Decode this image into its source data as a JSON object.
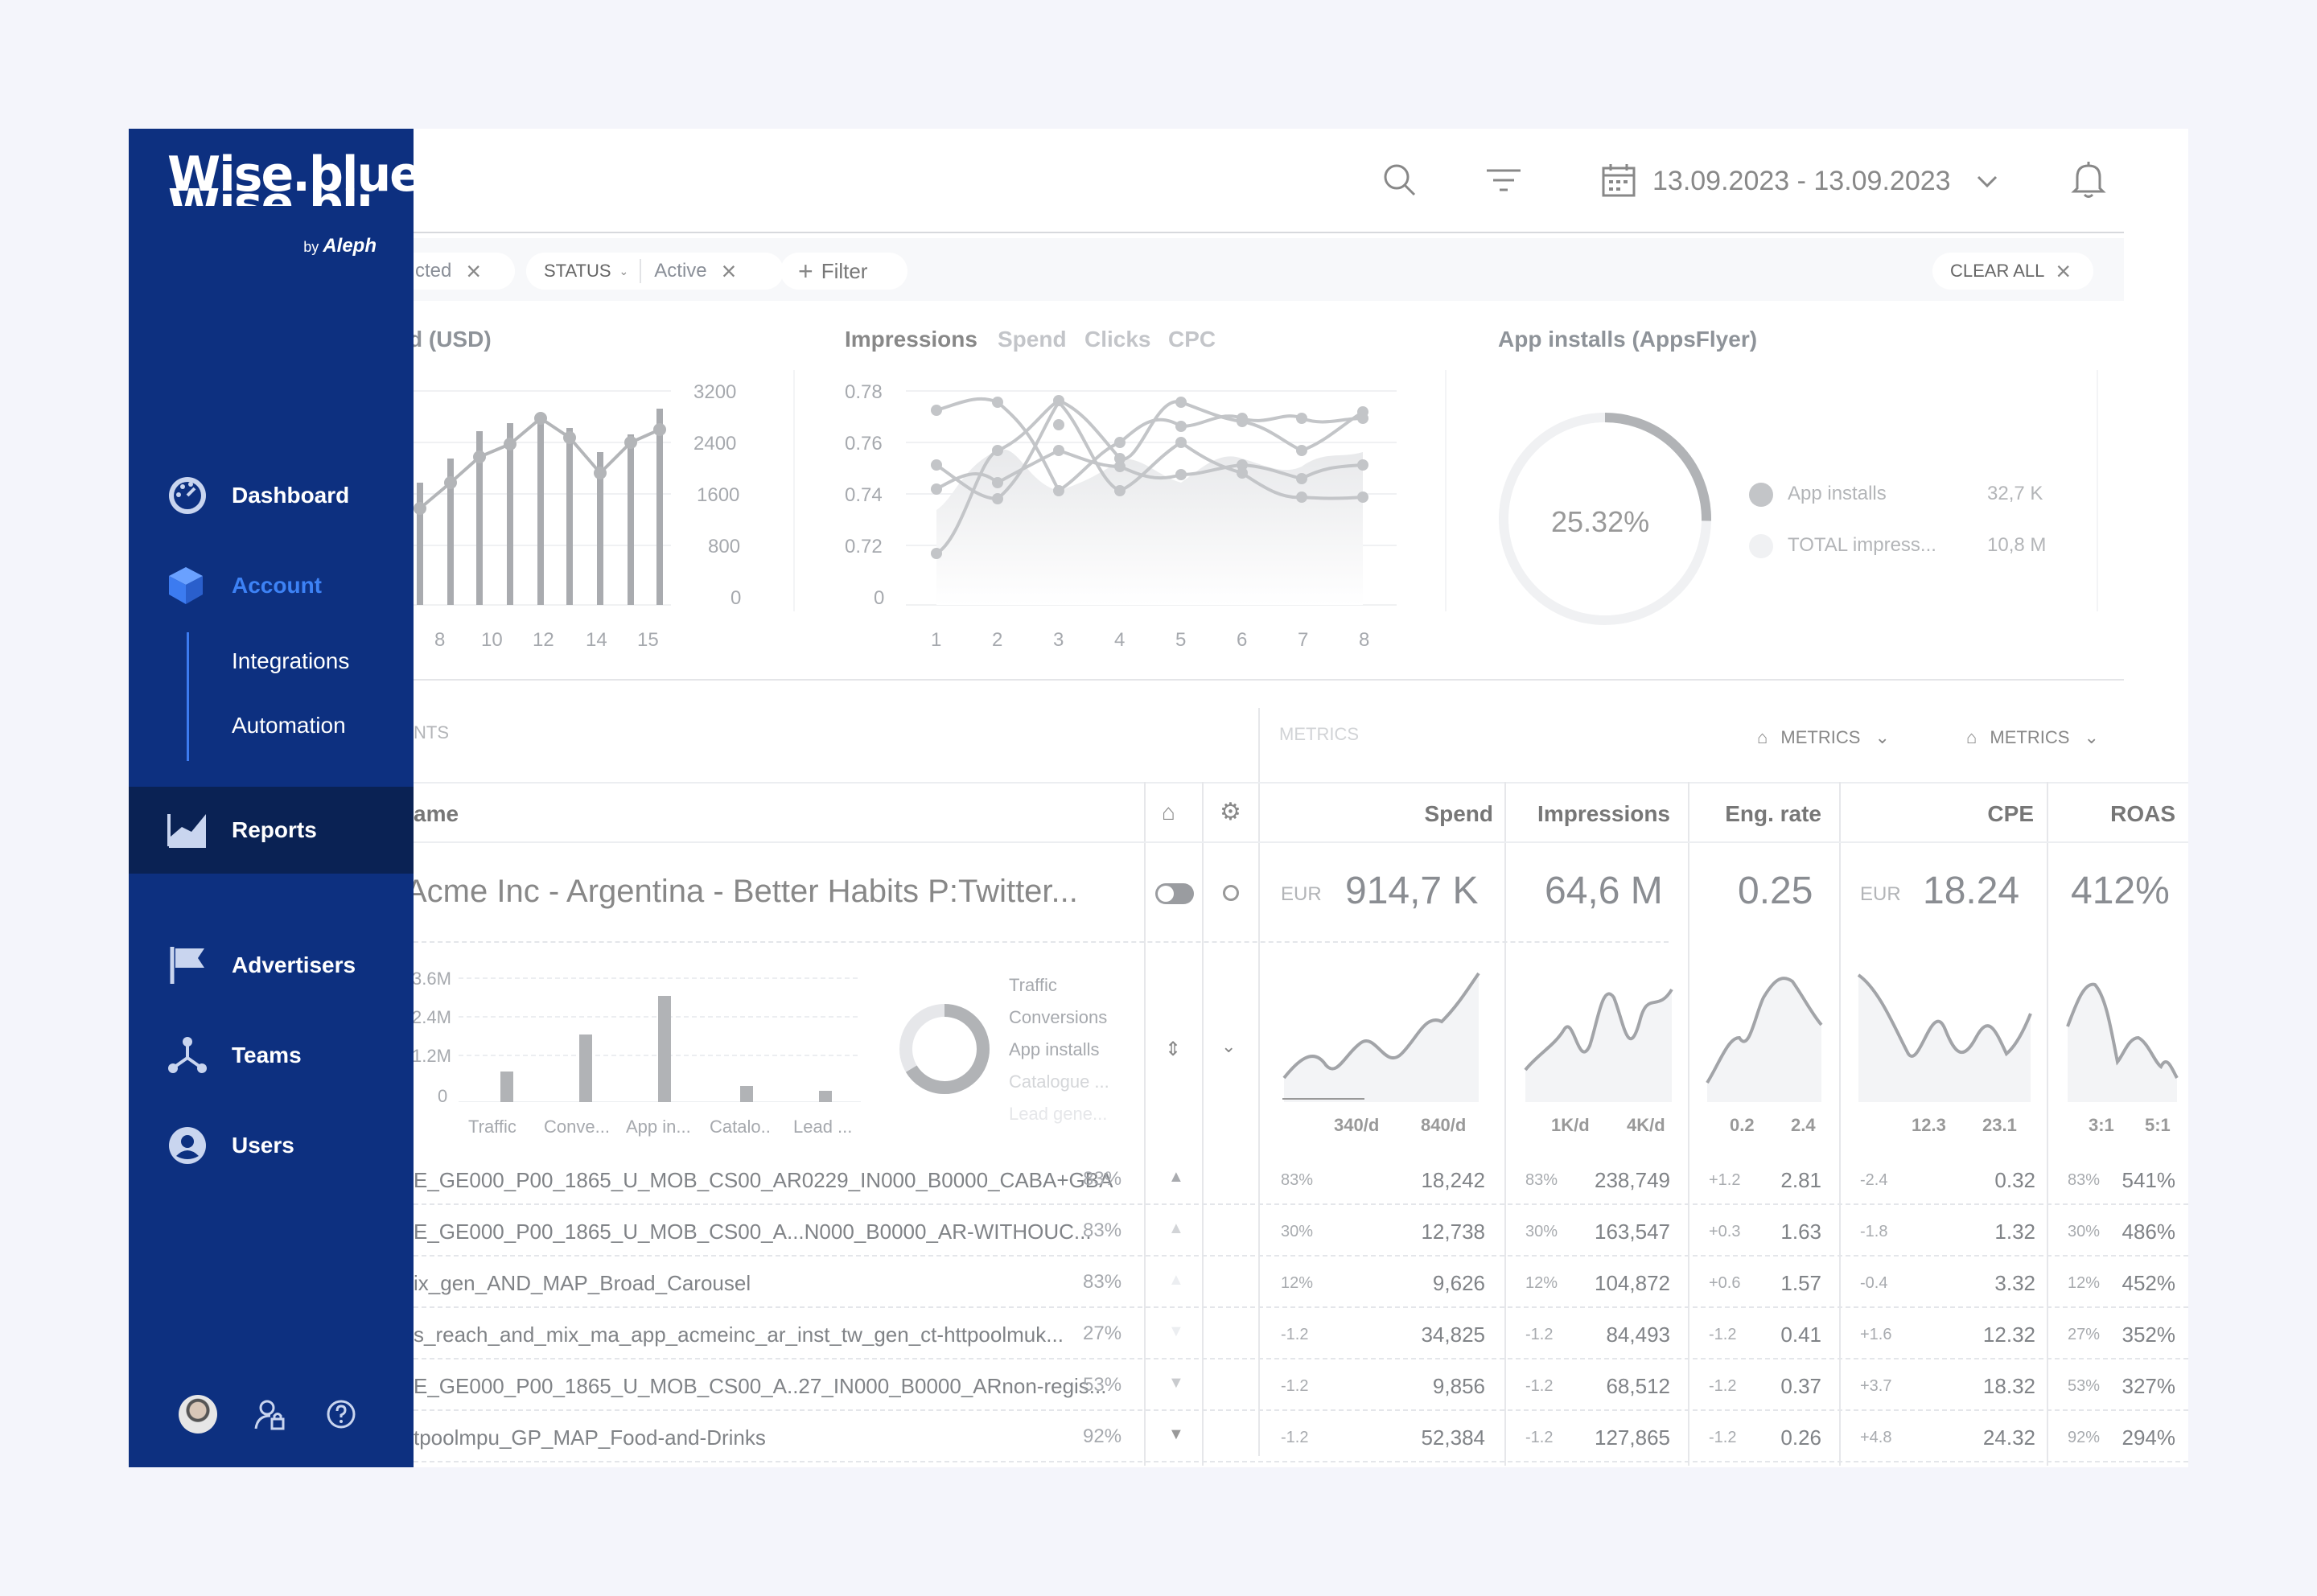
{
  "brand": {
    "name_line1": "Wise.blue",
    "name_line2": "Wise.blue",
    "by": "by",
    "partner": "Aleph"
  },
  "nav": {
    "dashboard": "Dashboard",
    "account": "Account",
    "integrations": "Integrations",
    "automation": "Automation",
    "reports": "Reports",
    "advertisers": "Advertisers",
    "teams": "Teams",
    "users": "Users"
  },
  "topbar": {
    "date_range": "13.09.2023 - 13.09.2023"
  },
  "filters": {
    "chip1": "cted",
    "status_label": "STATUS",
    "status_value": "Active",
    "add_filter": "Filter",
    "clear_all": "CLEAR ALL"
  },
  "chart1": {
    "title": "d (USD)",
    "y_ticks": [
      "3200",
      "2400",
      "1600",
      "800",
      "0"
    ],
    "x_ticks": [
      "8",
      "10",
      "12",
      "14",
      "15"
    ]
  },
  "chart2": {
    "tabs": [
      "Impressions",
      "Spend",
      "Clicks",
      "CPC"
    ],
    "y_ticks": [
      "0.78",
      "0.76",
      "0.74",
      "0.72",
      "0"
    ],
    "x_ticks": [
      "1",
      "2",
      "3",
      "4",
      "5",
      "6",
      "7",
      "8"
    ]
  },
  "chart3": {
    "title": "App installs (AppsFlyer)",
    "center": "25.32%",
    "legend": [
      {
        "label": "App installs",
        "value": "32,7 K"
      },
      {
        "label": "TOTAL impress...",
        "value": "10,8 M"
      }
    ]
  },
  "section": {
    "left": "NTS",
    "metrics_label": "METRICS",
    "metrics_btn1": "METRICS",
    "metrics_btn2": "METRICS"
  },
  "table": {
    "headers": {
      "name": "ame",
      "spend": "Spend",
      "impressions": "Impressions",
      "eng_rate": "Eng. rate",
      "cpe": "CPE",
      "roas": "ROAS"
    },
    "summary": {
      "name": "Acme Inc - Argentina - Better Habits P:Twitter...",
      "spend_cur": "EUR",
      "spend": "914,7 K",
      "impressions": "64,6 M",
      "eng_rate": "0.25",
      "cpe_cur": "EUR",
      "cpe": "18.24",
      "roas": "412%"
    },
    "mini": {
      "y_ticks": [
        "3.6M",
        "2.4M",
        "1.2M",
        "0"
      ],
      "categories": [
        "Traffic",
        "Conve...",
        "App in...",
        "Catalo..",
        "Lead ..."
      ],
      "legend": [
        "Traffic",
        "Conversions",
        "App installs",
        "Catalogue ...",
        "Lead gene..."
      ]
    },
    "ranges": {
      "spend": [
        "340/d",
        "840/d"
      ],
      "impressions": [
        "1K/d",
        "4K/d"
      ],
      "eng_rate": [
        "0.2",
        "2.4"
      ],
      "cpe": [
        "12.3",
        "23.1"
      ],
      "roas": [
        "3:1",
        "5:1"
      ]
    },
    "rows": [
      {
        "name": "E_GE000_P00_1865_U_MOB_CS00_AR0229_IN000_B0000_CABA+GBA",
        "pct": "83%",
        "spend_d": "83%",
        "spend": "18,242",
        "imp_d": "83%",
        "imp": "238,749",
        "eng_d": "+1.2",
        "eng": "2.81",
        "cpe_d": "-2.4",
        "cpe": "0.32",
        "roas_d": "83%",
        "roas": "541%"
      },
      {
        "name": "E_GE000_P00_1865_U_MOB_CS00_A...N000_B0000_AR-WITHOUC...",
        "pct": "83%",
        "spend_d": "30%",
        "spend": "12,738",
        "imp_d": "30%",
        "imp": "163,547",
        "eng_d": "+0.3",
        "eng": "1.63",
        "cpe_d": "-1.8",
        "cpe": "1.32",
        "roas_d": "30%",
        "roas": "486%"
      },
      {
        "name": "ix_gen_AND_MAP_Broad_Carousel",
        "pct": "83%",
        "spend_d": "12%",
        "spend": "9,626",
        "imp_d": "12%",
        "imp": "104,872",
        "eng_d": "+0.6",
        "eng": "1.57",
        "cpe_d": "-0.4",
        "cpe": "3.32",
        "roas_d": "12%",
        "roas": "452%"
      },
      {
        "name": "s_reach_and_mix_ma_app_acmeinc_ar_inst_tw_gen_ct-httpoolmuk...",
        "pct": "27%",
        "spend_d": "-1.2",
        "spend": "34,825",
        "imp_d": "-1.2",
        "imp": "84,493",
        "eng_d": "-1.2",
        "eng": "0.41",
        "cpe_d": "+1.6",
        "cpe": "12.32",
        "roas_d": "27%",
        "roas": "352%"
      },
      {
        "name": "E_GE000_P00_1865_U_MOB_CS00_A..27_IN000_B0000_ARnon-regis...",
        "pct": "53%",
        "spend_d": "-1.2",
        "spend": "9,856",
        "imp_d": "-1.2",
        "imp": "68,512",
        "eng_d": "-1.2",
        "eng": "0.37",
        "cpe_d": "+3.7",
        "cpe": "18.32",
        "roas_d": "53%",
        "roas": "327%"
      },
      {
        "name": "tpoolmpu_GP_MAP_Food-and-Drinks",
        "pct": "92%",
        "spend_d": "-1.2",
        "spend": "52,384",
        "imp_d": "-1.2",
        "imp": "127,865",
        "eng_d": "-1.2",
        "eng": "0.26",
        "cpe_d": "+4.8",
        "cpe": "24.32",
        "roas_d": "92%",
        "roas": "294%"
      }
    ]
  }
}
